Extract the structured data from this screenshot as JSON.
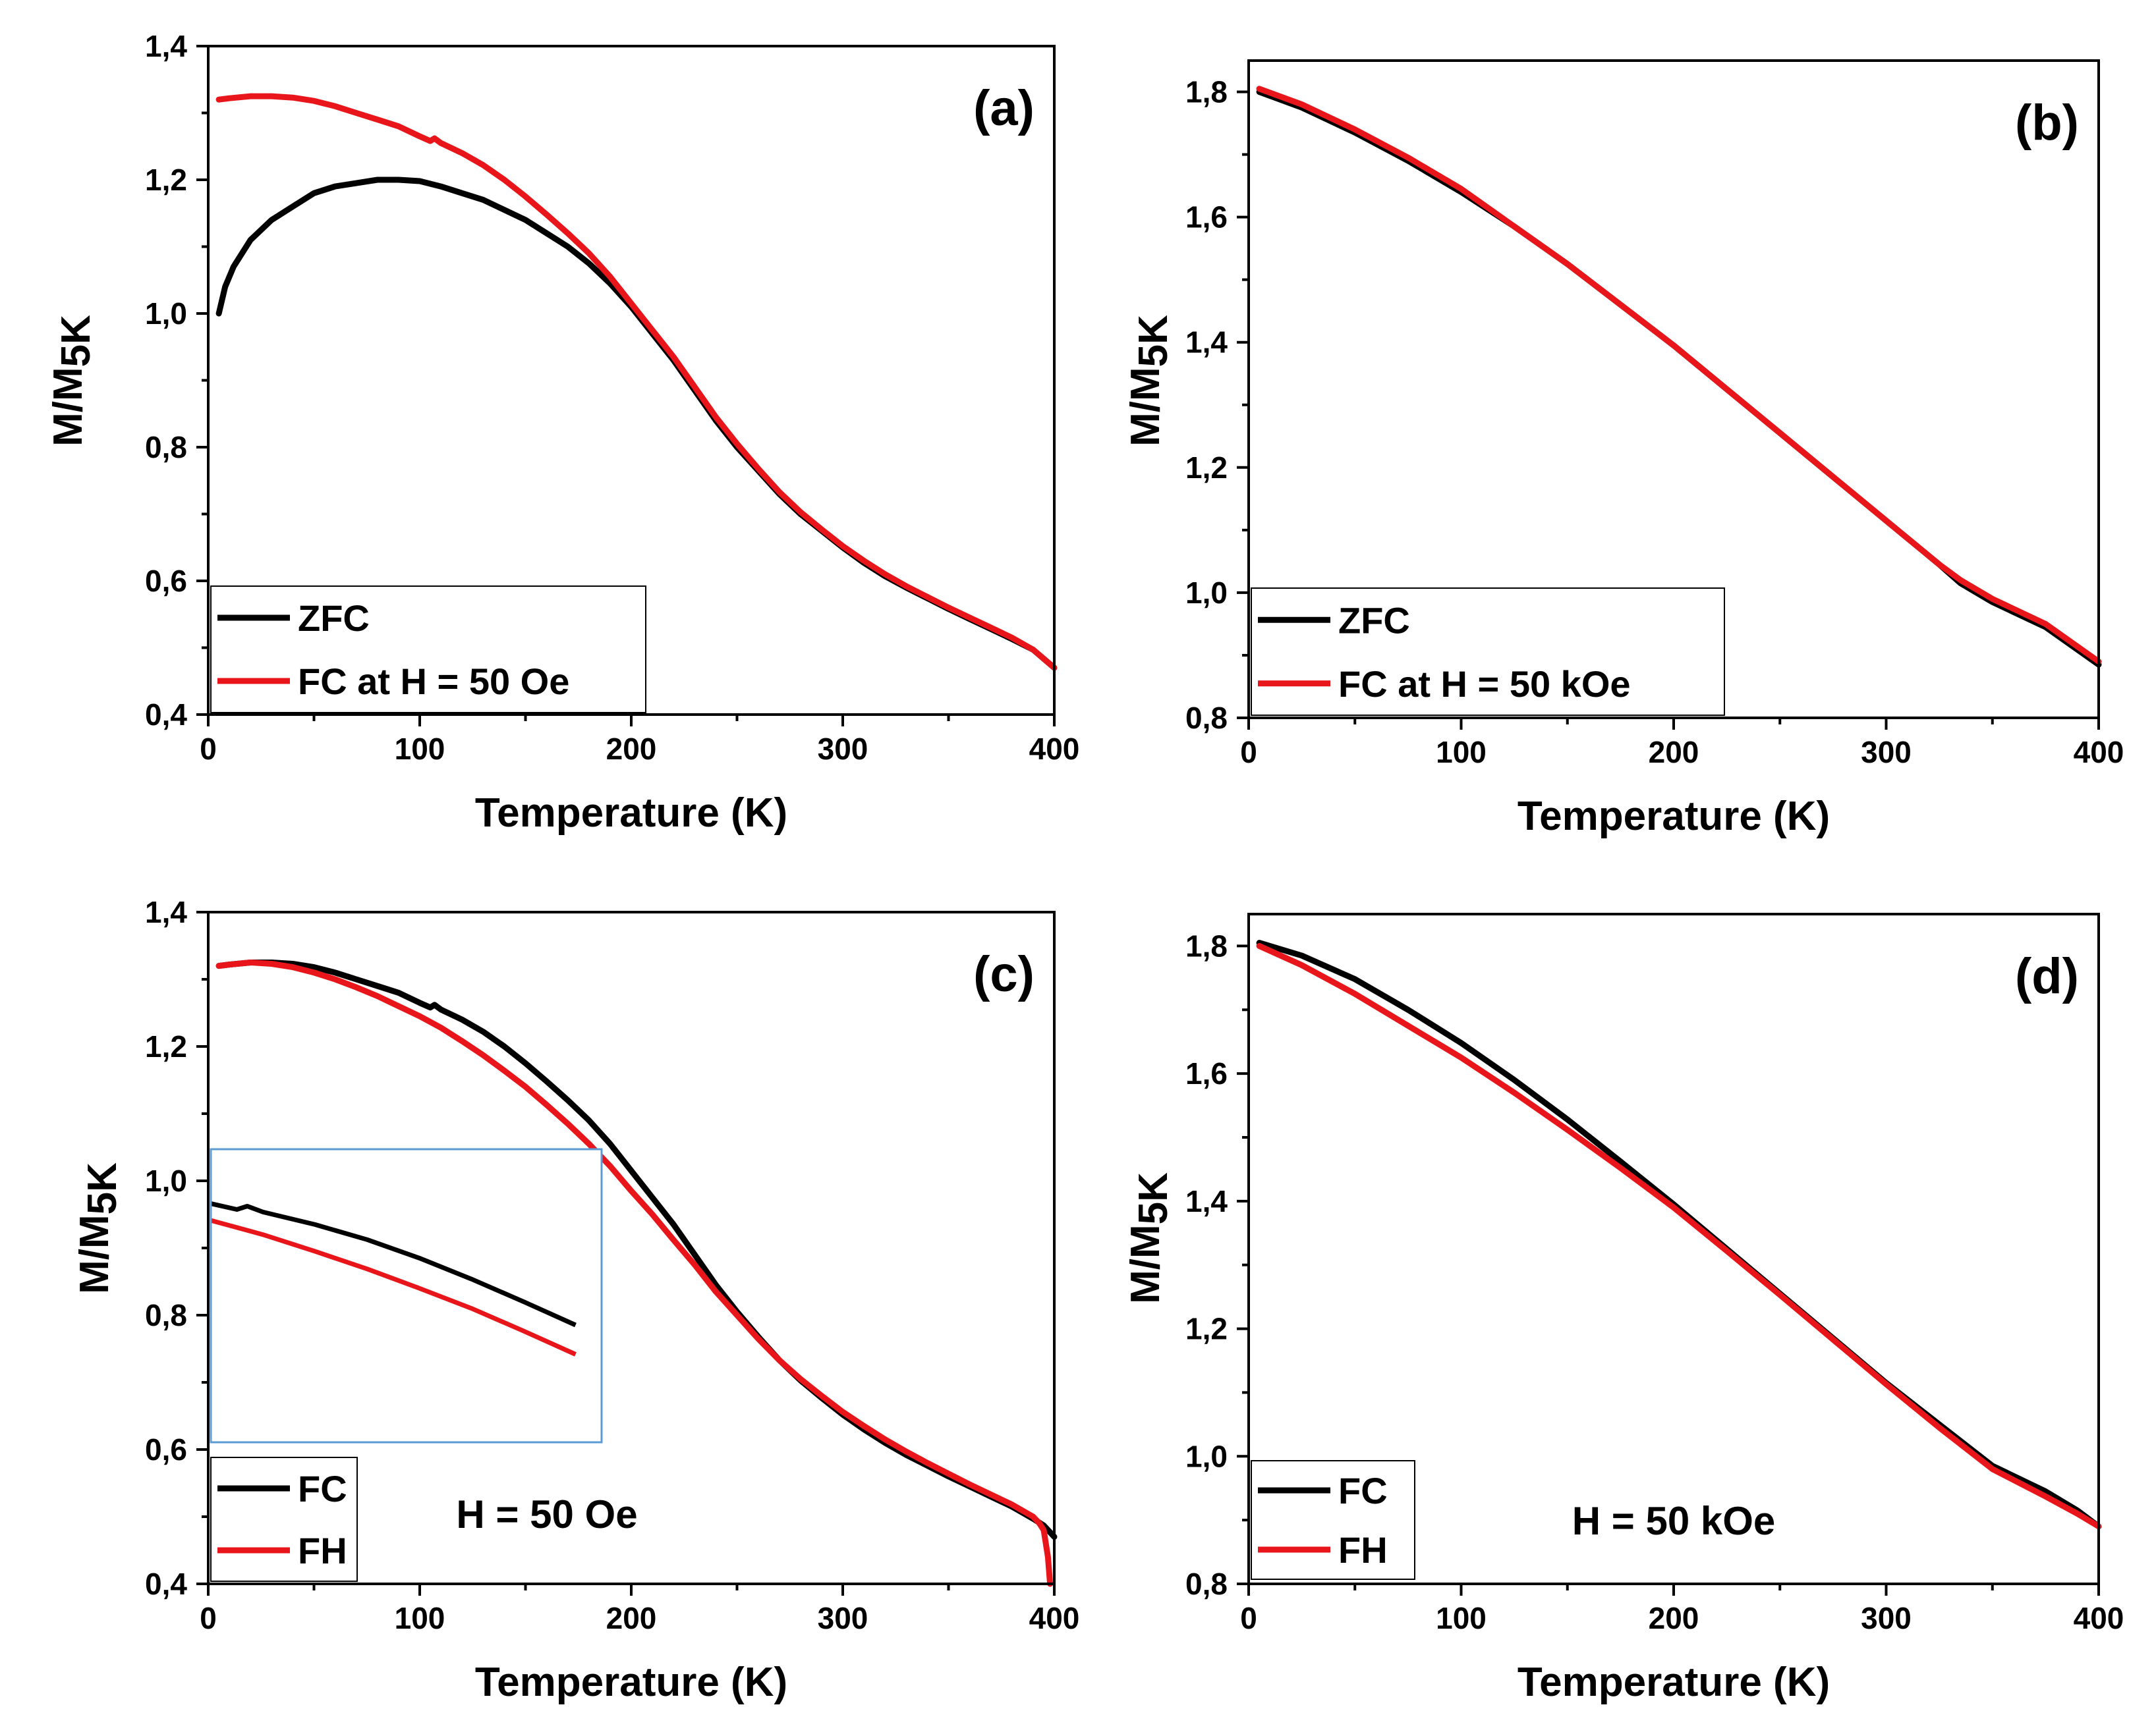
{
  "colors": {
    "black_series": "#000000",
    "red_series": "#e8161b",
    "inset_frame": "#5b9bd5"
  },
  "chart_data": [
    {
      "id": "a",
      "type": "line",
      "panel_label": "(a)",
      "xlabel": "Temperature (K)",
      "ylabel_main": "M/M",
      "ylabel_sub": "5K",
      "xlim": [
        0,
        400
      ],
      "ylim": [
        0.4,
        1.4
      ],
      "xticks": [
        0,
        100,
        200,
        300,
        400
      ],
      "xtick_labels": [
        "0",
        "100",
        "200",
        "300",
        "400"
      ],
      "yticks": [
        0.4,
        0.6,
        0.8,
        1.0,
        1.2,
        1.4
      ],
      "ytick_labels": [
        "0,4",
        "0,6",
        "0,8",
        "1,0",
        "1,2",
        "1,4"
      ],
      "legend_position": "bottom-left",
      "annotation": "",
      "series": [
        {
          "name": "ZFC",
          "color": "black",
          "x": [
            5,
            8,
            12,
            20,
            30,
            40,
            50,
            60,
            70,
            80,
            90,
            100,
            110,
            120,
            130,
            140,
            150,
            160,
            170,
            180,
            190,
            200,
            210,
            220,
            230,
            240,
            250,
            260,
            270,
            280,
            290,
            300,
            310,
            320,
            330,
            340,
            350,
            360,
            370,
            380,
            390,
            400
          ],
          "y": [
            1.0,
            1.04,
            1.07,
            1.11,
            1.14,
            1.16,
            1.18,
            1.19,
            1.195,
            1.2,
            1.2,
            1.198,
            1.19,
            1.18,
            1.17,
            1.155,
            1.14,
            1.12,
            1.1,
            1.075,
            1.045,
            1.01,
            0.97,
            0.93,
            0.885,
            0.84,
            0.8,
            0.765,
            0.73,
            0.7,
            0.675,
            0.65,
            0.627,
            0.607,
            0.59,
            0.574,
            0.558,
            0.543,
            0.528,
            0.513,
            0.497,
            0.47
          ]
        },
        {
          "name": "FC at H = 50 Oe",
          "color": "red",
          "x": [
            5,
            10,
            20,
            30,
            40,
            50,
            60,
            70,
            80,
            90,
            100,
            105,
            107,
            110,
            120,
            130,
            140,
            150,
            160,
            170,
            180,
            190,
            200,
            210,
            220,
            230,
            240,
            250,
            260,
            270,
            280,
            290,
            300,
            310,
            320,
            330,
            340,
            350,
            360,
            370,
            380,
            390,
            400
          ],
          "y": [
            1.32,
            1.322,
            1.325,
            1.325,
            1.323,
            1.318,
            1.31,
            1.3,
            1.29,
            1.28,
            1.265,
            1.258,
            1.262,
            1.255,
            1.24,
            1.222,
            1.2,
            1.175,
            1.148,
            1.12,
            1.09,
            1.055,
            1.015,
            0.975,
            0.935,
            0.89,
            0.845,
            0.805,
            0.768,
            0.733,
            0.703,
            0.677,
            0.652,
            0.63,
            0.61,
            0.592,
            0.576,
            0.56,
            0.545,
            0.53,
            0.515,
            0.497,
            0.47
          ]
        }
      ],
      "legend_labels": [
        "ZFC",
        "FC at H = 50 Oe"
      ]
    },
    {
      "id": "b",
      "type": "line",
      "panel_label": "(b)",
      "xlabel": "Temperature (K)",
      "ylabel_main": "M/M",
      "ylabel_sub": "5K",
      "xlim": [
        0,
        400
      ],
      "ylim": [
        0.8,
        1.85
      ],
      "xticks": [
        0,
        100,
        200,
        300,
        400
      ],
      "xtick_labels": [
        "0",
        "100",
        "200",
        "300",
        "400"
      ],
      "yticks": [
        0.8,
        1.0,
        1.2,
        1.4,
        1.6,
        1.8
      ],
      "ytick_labels": [
        "0,8",
        "1,0",
        "1,2",
        "1,4",
        "1,6",
        "1,8"
      ],
      "legend_position": "bottom-left",
      "annotation": "",
      "series": [
        {
          "name": "ZFC",
          "color": "black",
          "x": [
            5,
            25,
            50,
            75,
            100,
            125,
            150,
            175,
            200,
            225,
            250,
            275,
            300,
            325,
            335,
            350,
            375,
            400
          ],
          "y": [
            1.8,
            1.775,
            1.735,
            1.69,
            1.64,
            1.585,
            1.525,
            1.46,
            1.395,
            1.325,
            1.255,
            1.185,
            1.115,
            1.045,
            1.015,
            0.985,
            0.945,
            0.885
          ]
        },
        {
          "name": "FC at H = 50 kOe",
          "color": "red",
          "x": [
            5,
            25,
            50,
            75,
            100,
            125,
            150,
            175,
            200,
            225,
            250,
            275,
            300,
            325,
            335,
            350,
            375,
            400
          ],
          "y": [
            1.805,
            1.78,
            1.74,
            1.695,
            1.645,
            1.585,
            1.525,
            1.46,
            1.395,
            1.325,
            1.255,
            1.185,
            1.115,
            1.045,
            1.02,
            0.99,
            0.95,
            0.89
          ]
        }
      ],
      "legend_labels": [
        "ZFC",
        "FC at H = 50 kOe"
      ]
    },
    {
      "id": "c",
      "type": "line",
      "panel_label": "(c)",
      "xlabel": "Temperature (K)",
      "ylabel_main": "M/M",
      "ylabel_sub": "5K",
      "xlim": [
        0,
        400
      ],
      "ylim": [
        0.4,
        1.4
      ],
      "xticks": [
        0,
        100,
        200,
        300,
        400
      ],
      "xtick_labels": [
        "0",
        "100",
        "200",
        "300",
        "400"
      ],
      "yticks": [
        0.4,
        0.6,
        0.8,
        1.0,
        1.2,
        1.4
      ],
      "ytick_labels": [
        "0,4",
        "0,6",
        "0,8",
        "1,0",
        "1,2",
        "1,4"
      ],
      "legend_position": "bottom-left",
      "annotation": "H = 50 Oe",
      "series": [
        {
          "name": "FC",
          "color": "black",
          "x": [
            5,
            10,
            20,
            30,
            40,
            50,
            60,
            70,
            80,
            90,
            100,
            105,
            107,
            110,
            120,
            130,
            140,
            150,
            160,
            170,
            180,
            190,
            200,
            210,
            220,
            230,
            240,
            250,
            260,
            270,
            280,
            290,
            300,
            310,
            320,
            330,
            340,
            350,
            360,
            370,
            380,
            390,
            395,
            400
          ],
          "y": [
            1.32,
            1.322,
            1.325,
            1.325,
            1.323,
            1.318,
            1.31,
            1.3,
            1.29,
            1.28,
            1.265,
            1.258,
            1.262,
            1.255,
            1.24,
            1.222,
            1.2,
            1.175,
            1.148,
            1.12,
            1.09,
            1.055,
            1.015,
            0.975,
            0.935,
            0.89,
            0.845,
            0.805,
            0.768,
            0.733,
            0.703,
            0.677,
            0.652,
            0.63,
            0.61,
            0.592,
            0.576,
            0.56,
            0.545,
            0.53,
            0.515,
            0.497,
            0.487,
            0.47
          ]
        },
        {
          "name": "FH",
          "color": "red",
          "x": [
            5,
            10,
            20,
            30,
            40,
            50,
            60,
            70,
            80,
            90,
            100,
            110,
            120,
            130,
            140,
            150,
            160,
            170,
            180,
            190,
            200,
            210,
            220,
            230,
            240,
            250,
            260,
            270,
            280,
            290,
            300,
            310,
            320,
            330,
            340,
            350,
            360,
            370,
            380,
            390,
            393,
            395,
            397,
            398
          ],
          "y": [
            1.32,
            1.322,
            1.325,
            1.323,
            1.318,
            1.31,
            1.3,
            1.288,
            1.275,
            1.26,
            1.245,
            1.228,
            1.208,
            1.187,
            1.164,
            1.14,
            1.113,
            1.085,
            1.055,
            1.022,
            0.985,
            0.95,
            0.912,
            0.875,
            0.835,
            0.8,
            0.765,
            0.733,
            0.705,
            0.68,
            0.656,
            0.635,
            0.615,
            0.597,
            0.58,
            0.564,
            0.548,
            0.533,
            0.518,
            0.5,
            0.49,
            0.48,
            0.44,
            0.4
          ]
        }
      ],
      "legend_labels": [
        "FC",
        "FH"
      ]
    },
    {
      "id": "d",
      "type": "line",
      "panel_label": "(d)",
      "xlabel": "Temperature (K)",
      "ylabel_main": "M/M",
      "ylabel_sub": "5K",
      "xlim": [
        0,
        400
      ],
      "ylim": [
        0.8,
        1.85
      ],
      "xticks": [
        0,
        100,
        200,
        300,
        400
      ],
      "xtick_labels": [
        "0",
        "100",
        "200",
        "300",
        "400"
      ],
      "yticks": [
        0.8,
        1.0,
        1.2,
        1.4,
        1.6,
        1.8
      ],
      "ytick_labels": [
        "0,8",
        "1,0",
        "1,2",
        "1,4",
        "1,6",
        "1,8"
      ],
      "legend_position": "bottom-left",
      "annotation": "H = 50 kOe",
      "series": [
        {
          "name": "FC",
          "color": "black",
          "x": [
            5,
            25,
            50,
            75,
            100,
            125,
            150,
            175,
            200,
            225,
            250,
            275,
            300,
            325,
            350,
            375,
            390,
            400
          ],
          "y": [
            1.805,
            1.785,
            1.748,
            1.7,
            1.648,
            1.59,
            1.528,
            1.462,
            1.395,
            1.325,
            1.255,
            1.185,
            1.115,
            1.05,
            0.985,
            0.945,
            0.915,
            0.89
          ]
        },
        {
          "name": "FH",
          "color": "red",
          "x": [
            5,
            25,
            50,
            75,
            100,
            125,
            150,
            175,
            200,
            225,
            250,
            275,
            300,
            325,
            350,
            375,
            390,
            400
          ],
          "y": [
            1.8,
            1.77,
            1.725,
            1.675,
            1.625,
            1.57,
            1.512,
            1.452,
            1.39,
            1.322,
            1.253,
            1.183,
            1.113,
            1.045,
            0.98,
            0.937,
            0.91,
            0.89
          ]
        }
      ],
      "legend_labels": [
        "FC",
        "FH"
      ]
    }
  ]
}
